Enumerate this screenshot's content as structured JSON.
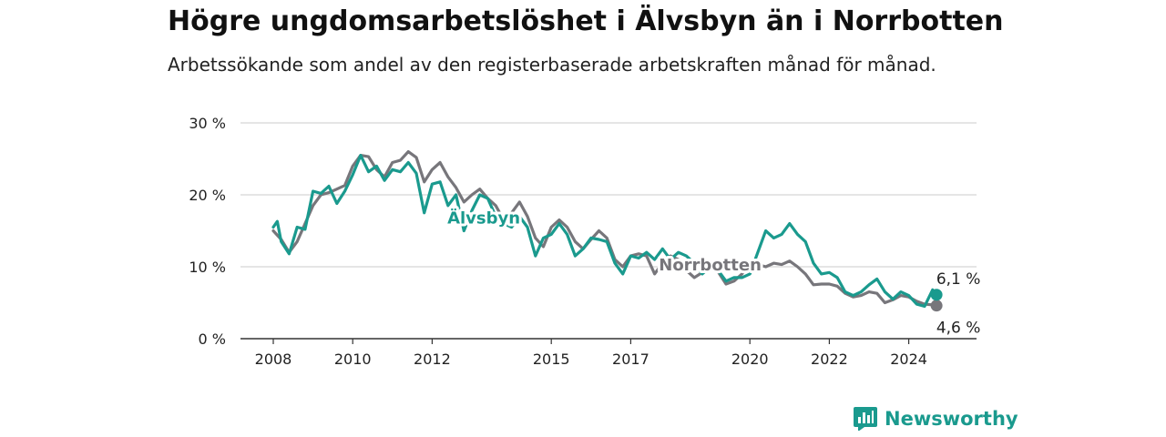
{
  "header": {
    "title": "Högre ungdomsarbetslöshet i Älvsbyn än i Norrbotten",
    "subtitle": "Arbetssökande som andel av den registerbaserade arbetskraften månad för månad."
  },
  "brand": {
    "name": "Newsworthy",
    "color": "#1a9a8e"
  },
  "chart_data": {
    "type": "line",
    "title": "Högre ungdomsarbetslöshet i Älvsbyn än i Norrbotten",
    "subtitle": "Arbetssökande som andel av den registerbaserade arbetskraften månad för månad.",
    "xlabel": "",
    "ylabel": "",
    "xlim": [
      2008,
      2025
    ],
    "ylim": [
      0,
      30
    ],
    "y_ticks": [
      {
        "value": 0,
        "label": "0 %"
      },
      {
        "value": 10,
        "label": "10 %"
      },
      {
        "value": 20,
        "label": "20 %"
      },
      {
        "value": 30,
        "label": "30 %"
      }
    ],
    "x_ticks": [
      {
        "value": 2008,
        "label": "2008"
      },
      {
        "value": 2010,
        "label": "2010"
      },
      {
        "value": 2012,
        "label": "2012"
      },
      {
        "value": 2015,
        "label": "2015"
      },
      {
        "value": 2017,
        "label": "2017"
      },
      {
        "value": 2020,
        "label": "2020"
      },
      {
        "value": 2022,
        "label": "2022"
      },
      {
        "value": 2024,
        "label": "2024"
      }
    ],
    "grid": true,
    "series": [
      {
        "name": "Norrbotten",
        "color": "#77767b",
        "end_label": "4,6 %",
        "points": [
          [
            2008.0,
            15.0
          ],
          [
            2008.2,
            13.8
          ],
          [
            2008.4,
            12.0
          ],
          [
            2008.6,
            13.5
          ],
          [
            2008.8,
            16.0
          ],
          [
            2009.0,
            18.5
          ],
          [
            2009.2,
            20.0
          ],
          [
            2009.4,
            20.3
          ],
          [
            2009.6,
            20.8
          ],
          [
            2009.8,
            21.3
          ],
          [
            2010.0,
            24.0
          ],
          [
            2010.2,
            25.5
          ],
          [
            2010.4,
            25.3
          ],
          [
            2010.6,
            23.5
          ],
          [
            2010.8,
            22.5
          ],
          [
            2011.0,
            24.5
          ],
          [
            2011.2,
            24.8
          ],
          [
            2011.4,
            26.0
          ],
          [
            2011.6,
            25.2
          ],
          [
            2011.8,
            21.8
          ],
          [
            2012.0,
            23.5
          ],
          [
            2012.2,
            24.5
          ],
          [
            2012.4,
            22.5
          ],
          [
            2012.6,
            21.0
          ],
          [
            2012.8,
            19.0
          ],
          [
            2013.0,
            20.0
          ],
          [
            2013.2,
            20.8
          ],
          [
            2013.4,
            19.5
          ],
          [
            2013.6,
            18.5
          ],
          [
            2013.8,
            16.5
          ],
          [
            2014.0,
            17.5
          ],
          [
            2014.2,
            19.0
          ],
          [
            2014.4,
            17.0
          ],
          [
            2014.6,
            14.0
          ],
          [
            2014.8,
            12.8
          ],
          [
            2015.0,
            15.5
          ],
          [
            2015.2,
            16.5
          ],
          [
            2015.4,
            15.5
          ],
          [
            2015.6,
            13.5
          ],
          [
            2015.8,
            12.5
          ],
          [
            2016.0,
            13.8
          ],
          [
            2016.2,
            15.0
          ],
          [
            2016.4,
            14.0
          ],
          [
            2016.6,
            11.0
          ],
          [
            2016.8,
            10.0
          ],
          [
            2017.0,
            11.5
          ],
          [
            2017.2,
            11.8
          ],
          [
            2017.4,
            11.5
          ],
          [
            2017.6,
            9.0
          ],
          [
            2017.8,
            10.5
          ],
          [
            2018.0,
            11.5
          ],
          [
            2018.2,
            11.0
          ],
          [
            2018.4,
            9.5
          ],
          [
            2018.6,
            8.5
          ],
          [
            2018.8,
            9.2
          ],
          [
            2019.0,
            10.0
          ],
          [
            2019.2,
            9.3
          ],
          [
            2019.4,
            7.6
          ],
          [
            2019.6,
            8.0
          ],
          [
            2019.8,
            9.0
          ],
          [
            2020.0,
            10.5
          ],
          [
            2020.2,
            10.3
          ],
          [
            2020.4,
            10.0
          ],
          [
            2020.6,
            10.5
          ],
          [
            2020.8,
            10.3
          ],
          [
            2021.0,
            10.8
          ],
          [
            2021.2,
            10.0
          ],
          [
            2021.4,
            9.0
          ],
          [
            2021.6,
            7.5
          ],
          [
            2021.8,
            7.6
          ],
          [
            2022.0,
            7.6
          ],
          [
            2022.2,
            7.3
          ],
          [
            2022.4,
            6.3
          ],
          [
            2022.6,
            5.8
          ],
          [
            2022.8,
            6.0
          ],
          [
            2023.0,
            6.5
          ],
          [
            2023.2,
            6.3
          ],
          [
            2023.4,
            5.0
          ],
          [
            2023.6,
            5.4
          ],
          [
            2023.8,
            6.0
          ],
          [
            2024.0,
            5.8
          ],
          [
            2024.2,
            5.2
          ],
          [
            2024.4,
            4.8
          ],
          [
            2024.6,
            4.7
          ],
          [
            2024.7,
            4.6
          ]
        ]
      },
      {
        "name": "Älvsbyn",
        "color": "#1a9a8e",
        "end_label": "6,1 %",
        "points": [
          [
            2008.0,
            15.5
          ],
          [
            2008.1,
            16.3
          ],
          [
            2008.2,
            13.5
          ],
          [
            2008.4,
            11.8
          ],
          [
            2008.6,
            15.5
          ],
          [
            2008.8,
            15.2
          ],
          [
            2009.0,
            20.5
          ],
          [
            2009.2,
            20.2
          ],
          [
            2009.4,
            21.2
          ],
          [
            2009.6,
            18.8
          ],
          [
            2009.8,
            20.5
          ],
          [
            2010.0,
            22.8
          ],
          [
            2010.2,
            25.5
          ],
          [
            2010.4,
            23.2
          ],
          [
            2010.6,
            24.0
          ],
          [
            2010.8,
            22.0
          ],
          [
            2011.0,
            23.5
          ],
          [
            2011.2,
            23.2
          ],
          [
            2011.4,
            24.5
          ],
          [
            2011.6,
            23.0
          ],
          [
            2011.8,
            17.5
          ],
          [
            2012.0,
            21.5
          ],
          [
            2012.2,
            21.8
          ],
          [
            2012.4,
            18.5
          ],
          [
            2012.6,
            20.0
          ],
          [
            2012.8,
            15.0
          ],
          [
            2013.0,
            17.8
          ],
          [
            2013.2,
            20.0
          ],
          [
            2013.4,
            19.5
          ],
          [
            2013.6,
            17.0
          ],
          [
            2013.8,
            16.0
          ],
          [
            2014.0,
            15.5
          ],
          [
            2014.2,
            17.0
          ],
          [
            2014.4,
            15.5
          ],
          [
            2014.6,
            11.5
          ],
          [
            2014.8,
            14.0
          ],
          [
            2015.0,
            14.5
          ],
          [
            2015.2,
            16.0
          ],
          [
            2015.4,
            14.5
          ],
          [
            2015.6,
            11.5
          ],
          [
            2015.8,
            12.5
          ],
          [
            2016.0,
            14.0
          ],
          [
            2016.2,
            13.8
          ],
          [
            2016.4,
            13.5
          ],
          [
            2016.6,
            10.5
          ],
          [
            2016.8,
            9.0
          ],
          [
            2017.0,
            11.5
          ],
          [
            2017.2,
            11.2
          ],
          [
            2017.4,
            12.0
          ],
          [
            2017.6,
            11.0
          ],
          [
            2017.8,
            12.5
          ],
          [
            2018.0,
            11.0
          ],
          [
            2018.2,
            12.0
          ],
          [
            2018.4,
            11.5
          ],
          [
            2018.6,
            10.5
          ],
          [
            2018.8,
            9.0
          ],
          [
            2019.0,
            10.0
          ],
          [
            2019.2,
            9.5
          ],
          [
            2019.4,
            8.0
          ],
          [
            2019.6,
            8.5
          ],
          [
            2019.8,
            8.5
          ],
          [
            2020.0,
            9.0
          ],
          [
            2020.2,
            12.0
          ],
          [
            2020.4,
            15.0
          ],
          [
            2020.6,
            14.0
          ],
          [
            2020.8,
            14.5
          ],
          [
            2021.0,
            16.0
          ],
          [
            2021.2,
            14.5
          ],
          [
            2021.4,
            13.5
          ],
          [
            2021.6,
            10.5
          ],
          [
            2021.8,
            9.0
          ],
          [
            2022.0,
            9.2
          ],
          [
            2022.2,
            8.5
          ],
          [
            2022.4,
            6.5
          ],
          [
            2022.6,
            6.0
          ],
          [
            2022.8,
            6.5
          ],
          [
            2023.0,
            7.5
          ],
          [
            2023.2,
            8.3
          ],
          [
            2023.4,
            6.5
          ],
          [
            2023.6,
            5.5
          ],
          [
            2023.8,
            6.5
          ],
          [
            2024.0,
            6.0
          ],
          [
            2024.2,
            4.8
          ],
          [
            2024.4,
            4.5
          ],
          [
            2024.6,
            6.8
          ],
          [
            2024.7,
            6.1
          ]
        ]
      }
    ],
    "annotations": [
      {
        "text": "Älvsbyn",
        "series": "Älvsbyn",
        "x": 2013.3,
        "y": 16.0
      },
      {
        "text": "Norrbotten",
        "series": "Norrbotten",
        "x": 2019.0,
        "y": 9.5
      }
    ]
  }
}
